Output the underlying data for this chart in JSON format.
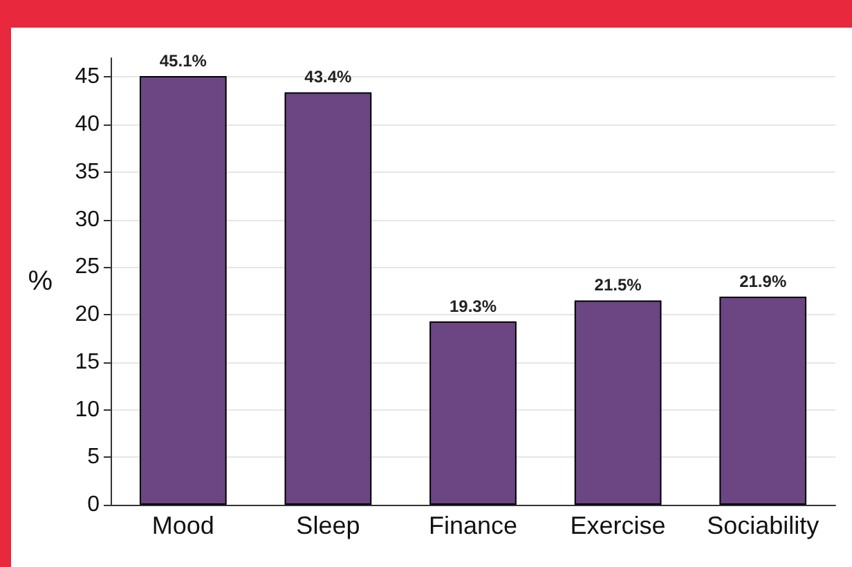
{
  "chart_data": {
    "type": "bar",
    "ylabel": "%",
    "categories": [
      "Mood",
      "Sleep",
      "Finance",
      "Exercise",
      "Sociability"
    ],
    "values": [
      45.1,
      43.4,
      19.3,
      21.5,
      21.9
    ],
    "value_labels": [
      "45.1%",
      "43.4%",
      "19.3%",
      "21.5%",
      "21.9%"
    ],
    "color": "#6b4683",
    "ylim": [
      0,
      47
    ],
    "yticks": [
      0,
      5,
      10,
      15,
      20,
      25,
      30,
      35,
      40,
      45
    ],
    "grid": "y"
  }
}
